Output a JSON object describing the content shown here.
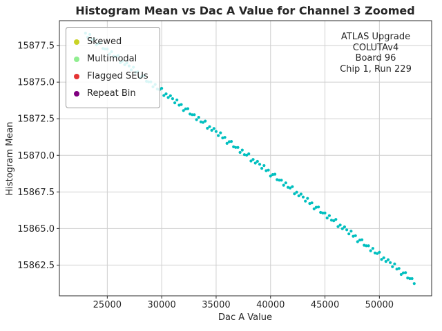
{
  "chart_data": {
    "type": "scatter",
    "title": "Histogram Mean vs Dac A Value for Channel 3 Zoomed",
    "xlabel": "Dac A Value",
    "ylabel": "Histogram Mean",
    "xlim": [
      20600,
      54800
    ],
    "ylim": [
      15860.4,
      15879.2
    ],
    "xticks": [
      25000,
      30000,
      35000,
      40000,
      45000,
      50000
    ],
    "yticks": [
      15862.5,
      15865.0,
      15867.5,
      15870.0,
      15872.5,
      15875.0,
      15877.5
    ],
    "grid": true,
    "point_color": "#00bfbf",
    "legend": {
      "position": "upper-left",
      "items": [
        {
          "label": "Skewed",
          "color": "#c9d326"
        },
        {
          "label": "Multimodal",
          "color": "#90ee90"
        },
        {
          "label": "Flagged SEUs",
          "color": "#e53333"
        },
        {
          "label": "Repeat Bin",
          "color": "#800080"
        }
      ]
    },
    "annotation": {
      "lines": [
        "ATLAS Upgrade",
        "COLUTAv4",
        "Board 96",
        "Chip 1, Run 229"
      ]
    },
    "points": [
      [
        23000,
        15878.35
      ],
      [
        23200,
        15878.07
      ],
      [
        23400,
        15878.26
      ],
      [
        23600,
        15877.91
      ],
      [
        23800,
        15877.95
      ],
      [
        24000,
        15877.54
      ],
      [
        24200,
        15877.65
      ],
      [
        24400,
        15877.67
      ],
      [
        24600,
        15877.3
      ],
      [
        24800,
        15877.26
      ],
      [
        25000,
        15877.26
      ],
      [
        25200,
        15876.92
      ],
      [
        25400,
        15877.08
      ],
      [
        25600,
        15876.77
      ],
      [
        25800,
        15876.73
      ],
      [
        26000,
        15876.82
      ],
      [
        26200,
        15876.33
      ],
      [
        26400,
        15876.44
      ],
      [
        26600,
        15876.19
      ],
      [
        26800,
        15876.31
      ],
      [
        27000,
        15876.11
      ],
      [
        27200,
        15875.83
      ],
      [
        27400,
        15876.02
      ],
      [
        27600,
        15875.67
      ],
      [
        27800,
        15875.71
      ],
      [
        28000,
        15875.3
      ],
      [
        28200,
        15875.41
      ],
      [
        28400,
        15875.43
      ],
      [
        28600,
        15875.06
      ],
      [
        28800,
        15875.02
      ],
      [
        29000,
        15875.02
      ],
      [
        29200,
        15874.68
      ],
      [
        29400,
        15874.84
      ],
      [
        29600,
        15874.53
      ],
      [
        29800,
        15874.49
      ],
      [
        30000,
        15874.58
      ],
      [
        30200,
        15874.09
      ],
      [
        30400,
        15874.2
      ],
      [
        30600,
        15873.95
      ],
      [
        30800,
        15874.07
      ],
      [
        31000,
        15873.87
      ],
      [
        31200,
        15873.59
      ],
      [
        31400,
        15873.78
      ],
      [
        31600,
        15873.43
      ],
      [
        31800,
        15873.47
      ],
      [
        32000,
        15873.06
      ],
      [
        32200,
        15873.17
      ],
      [
        32400,
        15873.19
      ],
      [
        32600,
        15872.82
      ],
      [
        32800,
        15872.78
      ],
      [
        33000,
        15872.78
      ],
      [
        33200,
        15872.44
      ],
      [
        33400,
        15872.6
      ],
      [
        33600,
        15872.29
      ],
      [
        33800,
        15872.25
      ],
      [
        34000,
        15872.34
      ],
      [
        34200,
        15871.85
      ],
      [
        34400,
        15871.96
      ],
      [
        34600,
        15871.71
      ],
      [
        34800,
        15871.83
      ],
      [
        35000,
        15871.63
      ],
      [
        35200,
        15871.35
      ],
      [
        35400,
        15871.54
      ],
      [
        35600,
        15871.19
      ],
      [
        35800,
        15871.23
      ],
      [
        36000,
        15870.82
      ],
      [
        36200,
        15870.93
      ],
      [
        36400,
        15870.95
      ],
      [
        36600,
        15870.58
      ],
      [
        36800,
        15870.54
      ],
      [
        37000,
        15870.54
      ],
      [
        37200,
        15870.2
      ],
      [
        37400,
        15870.36
      ],
      [
        37600,
        15870.05
      ],
      [
        37800,
        15870.01
      ],
      [
        38000,
        15870.1
      ],
      [
        38200,
        15869.61
      ],
      [
        38400,
        15869.72
      ],
      [
        38600,
        15869.47
      ],
      [
        38800,
        15869.59
      ],
      [
        39000,
        15869.39
      ],
      [
        39200,
        15869.11
      ],
      [
        39400,
        15869.3
      ],
      [
        39600,
        15868.95
      ],
      [
        39800,
        15868.99
      ],
      [
        40000,
        15868.58
      ],
      [
        40200,
        15868.69
      ],
      [
        40400,
        15868.71
      ],
      [
        40600,
        15868.34
      ],
      [
        40800,
        15868.3
      ],
      [
        41000,
        15868.3
      ],
      [
        41200,
        15867.96
      ],
      [
        41400,
        15868.12
      ],
      [
        41600,
        15867.81
      ],
      [
        41800,
        15867.77
      ],
      [
        42000,
        15867.86
      ],
      [
        42200,
        15867.37
      ],
      [
        42400,
        15867.48
      ],
      [
        42600,
        15867.23
      ],
      [
        42800,
        15867.35
      ],
      [
        43000,
        15867.15
      ],
      [
        43200,
        15866.87
      ],
      [
        43400,
        15867.06
      ],
      [
        43600,
        15866.71
      ],
      [
        43800,
        15866.75
      ],
      [
        44000,
        15866.34
      ],
      [
        44200,
        15866.45
      ],
      [
        44400,
        15866.47
      ],
      [
        44600,
        15866.1
      ],
      [
        44800,
        15866.06
      ],
      [
        45000,
        15866.06
      ],
      [
        45200,
        15865.72
      ],
      [
        45400,
        15865.88
      ],
      [
        45600,
        15865.57
      ],
      [
        45800,
        15865.53
      ],
      [
        46000,
        15865.62
      ],
      [
        46200,
        15865.13
      ],
      [
        46400,
        15865.24
      ],
      [
        46600,
        15864.99
      ],
      [
        46800,
        15865.11
      ],
      [
        47000,
        15864.91
      ],
      [
        47200,
        15864.63
      ],
      [
        47400,
        15864.82
      ],
      [
        47600,
        15864.47
      ],
      [
        47800,
        15864.51
      ],
      [
        48000,
        15864.1
      ],
      [
        48200,
        15864.21
      ],
      [
        48400,
        15864.23
      ],
      [
        48600,
        15863.86
      ],
      [
        48800,
        15863.82
      ],
      [
        49000,
        15863.82
      ],
      [
        49200,
        15863.48
      ],
      [
        49400,
        15863.64
      ],
      [
        49600,
        15863.33
      ],
      [
        49800,
        15863.29
      ],
      [
        50000,
        15863.38
      ],
      [
        50200,
        15862.89
      ],
      [
        50400,
        15863.0
      ],
      [
        50600,
        15862.75
      ],
      [
        50800,
        15862.87
      ],
      [
        51000,
        15862.67
      ],
      [
        51200,
        15862.39
      ],
      [
        51400,
        15862.58
      ],
      [
        51600,
        15862.23
      ],
      [
        51800,
        15862.27
      ],
      [
        52000,
        15861.86
      ],
      [
        52200,
        15861.97
      ],
      [
        52400,
        15861.99
      ],
      [
        52600,
        15861.62
      ],
      [
        52800,
        15861.58
      ],
      [
        53000,
        15861.58
      ],
      [
        53200,
        15861.24
      ]
    ]
  }
}
